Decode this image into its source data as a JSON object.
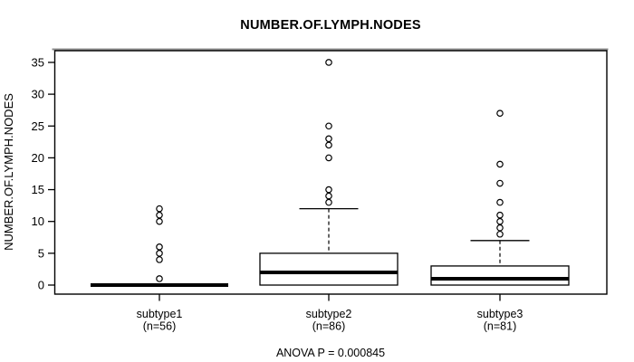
{
  "chart_data": {
    "type": "boxplot",
    "title": "NUMBER.OF.LYMPH.NODES",
    "ylabel": "NUMBER.OF.LYMPH.NODES",
    "xlabel": "",
    "annotation": "ANOVA P = 0.000845",
    "ylim": [
      0,
      35
    ],
    "yticks": [
      0,
      5,
      10,
      15,
      20,
      25,
      30,
      35
    ],
    "grid": false,
    "legend": "none",
    "colors": {
      "background": "#ffffff",
      "stroke": "#000000",
      "box_fill": "#ffffff",
      "frame_shadow": "#8e8e8e"
    },
    "series": [
      {
        "category": "subtype1",
        "sublabel": "(n=56)",
        "n": 56,
        "q1": 0,
        "median": 0,
        "q3": 0,
        "whisker_low": 0,
        "whisker_high": 0,
        "outliers": [
          1,
          4,
          5,
          6,
          10,
          11,
          12
        ]
      },
      {
        "category": "subtype2",
        "sublabel": "(n=86)",
        "n": 86,
        "q1": 0,
        "median": 2,
        "q3": 5,
        "whisker_low": 0,
        "whisker_high": 12,
        "outliers": [
          13,
          14,
          15,
          20,
          22,
          23,
          25,
          35
        ]
      },
      {
        "category": "subtype3",
        "sublabel": "(n=81)",
        "n": 81,
        "q1": 0,
        "median": 1,
        "q3": 3,
        "whisker_low": 0,
        "whisker_high": 7,
        "outliers": [
          8,
          9,
          10,
          11,
          13,
          16,
          19,
          27
        ]
      }
    ]
  }
}
